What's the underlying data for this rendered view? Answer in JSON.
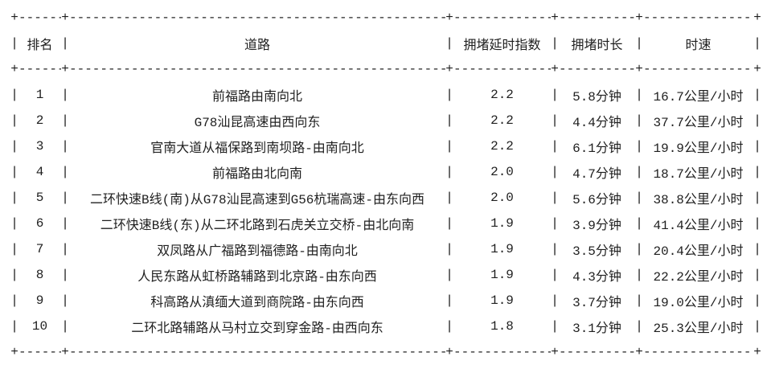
{
  "page": {
    "background": "#ffffff",
    "text_color": "#1f1f1f"
  },
  "table": {
    "border_chars": {
      "corner": "+",
      "horizontal": "-",
      "vertical": "|"
    },
    "columns": [
      "排名",
      "道路",
      "拥堵延时指数",
      "拥堵时长",
      "时速"
    ],
    "rows": [
      {
        "rank": "1",
        "road": "前福路由南向北",
        "delay_index": "2.2",
        "duration": "5.8分钟",
        "speed": "16.7公里/小时"
      },
      {
        "rank": "2",
        "road": "G78汕昆高速由西向东",
        "delay_index": "2.2",
        "duration": "4.4分钟",
        "speed": "37.7公里/小时"
      },
      {
        "rank": "3",
        "road": "官南大道从福保路到南坝路-由南向北",
        "delay_index": "2.2",
        "duration": "6.1分钟",
        "speed": "19.9公里/小时"
      },
      {
        "rank": "4",
        "road": "前福路由北向南",
        "delay_index": "2.0",
        "duration": "4.7分钟",
        "speed": "18.7公里/小时"
      },
      {
        "rank": "5",
        "road": "二环快速B线(南)从G78汕昆高速到G56杭瑞高速-由东向西",
        "delay_index": "2.0",
        "duration": "5.6分钟",
        "speed": "38.8公里/小时"
      },
      {
        "rank": "6",
        "road": "二环快速B线(东)从二环北路到石虎关立交桥-由北向南",
        "delay_index": "1.9",
        "duration": "3.9分钟",
        "speed": "41.4公里/小时"
      },
      {
        "rank": "7",
        "road": "双凤路从广福路到福德路-由南向北",
        "delay_index": "1.9",
        "duration": "3.5分钟",
        "speed": "20.4公里/小时"
      },
      {
        "rank": "8",
        "road": "人民东路从虹桥路辅路到北京路-由东向西",
        "delay_index": "1.9",
        "duration": "4.3分钟",
        "speed": "22.2公里/小时"
      },
      {
        "rank": "9",
        "road": "科高路从滇缅大道到商院路-由东向西",
        "delay_index": "1.9",
        "duration": "3.7分钟",
        "speed": "19.0公里/小时"
      },
      {
        "rank": "10",
        "road": "二环北路辅路从马村立交到穿金路-由西向东",
        "delay_index": "1.8",
        "duration": "3.1分钟",
        "speed": "25.3公里/小时"
      }
    ]
  }
}
